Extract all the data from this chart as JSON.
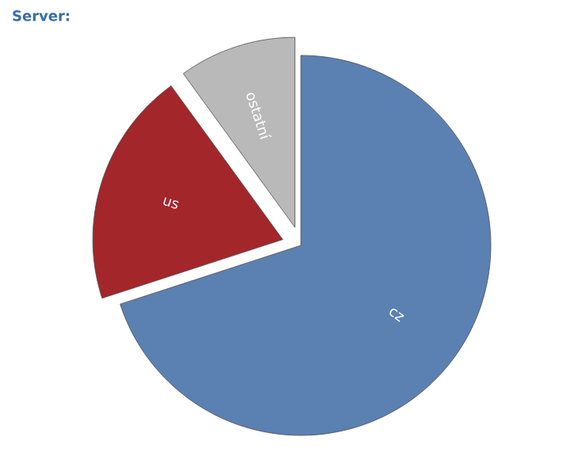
{
  "chart_data": {
    "type": "pie",
    "title": "Server:",
    "categories": [
      "cz",
      "us",
      "ostatní"
    ],
    "values": [
      70,
      20,
      10
    ],
    "colors": [
      "#5b80b2",
      "#a3262a",
      "#b9b9b9"
    ]
  }
}
